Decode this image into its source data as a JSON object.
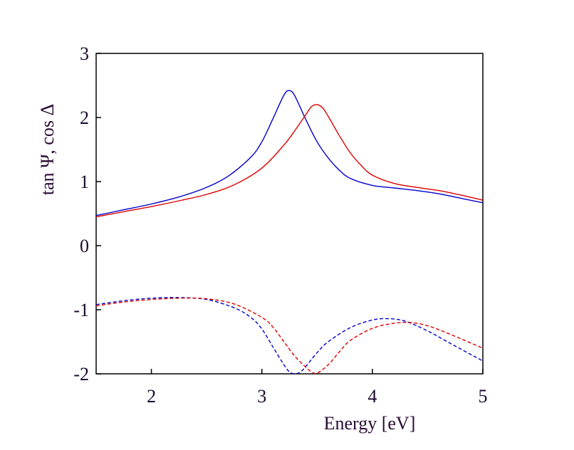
{
  "chart_data": {
    "type": "line",
    "xlabel": "Energy [eV]",
    "ylabel": "tan Ψ, cos Δ",
    "xlim": [
      1.5,
      5
    ],
    "ylim": [
      -2,
      3
    ],
    "xticks": [
      2,
      3,
      4,
      5
    ],
    "yticks": [
      3,
      2,
      1,
      0,
      -1,
      -2
    ],
    "x_tick_labels": [
      "2",
      "3",
      "4",
      "5"
    ],
    "y_tick_labels": [
      "3",
      "2",
      "1",
      "0",
      "-1",
      "-2"
    ],
    "grid": false,
    "legend": "none",
    "series": [
      {
        "color": "#0000cc",
        "style": "solid",
        "x": [
          1.5,
          1.75,
          2.0,
          2.25,
          2.5,
          2.7,
          2.9,
          3.0,
          3.1,
          3.2,
          3.25,
          3.3,
          3.4,
          3.5,
          3.6,
          3.7,
          3.8,
          4.0,
          4.2,
          4.4,
          4.6,
          4.8,
          5.0
        ],
        "values": [
          0.47,
          0.56,
          0.65,
          0.76,
          0.91,
          1.09,
          1.38,
          1.62,
          1.98,
          2.35,
          2.42,
          2.33,
          1.96,
          1.62,
          1.37,
          1.18,
          1.05,
          0.94,
          0.9,
          0.86,
          0.81,
          0.74,
          0.67
        ]
      },
      {
        "color": "#dd0000",
        "style": "solid",
        "x": [
          1.5,
          1.75,
          2.0,
          2.25,
          2.5,
          2.75,
          3.0,
          3.2,
          3.3,
          3.4,
          3.45,
          3.5,
          3.55,
          3.6,
          3.7,
          3.8,
          3.9,
          4.0,
          4.2,
          4.4,
          4.6,
          4.8,
          5.0
        ],
        "values": [
          0.45,
          0.53,
          0.61,
          0.7,
          0.8,
          0.95,
          1.21,
          1.57,
          1.8,
          2.05,
          2.17,
          2.2,
          2.15,
          2.02,
          1.72,
          1.45,
          1.25,
          1.1,
          0.97,
          0.91,
          0.86,
          0.79,
          0.71
        ]
      },
      {
        "color": "#0000cc",
        "style": "dashed",
        "x": [
          1.5,
          1.75,
          2.0,
          2.25,
          2.5,
          2.75,
          2.9,
          3.0,
          3.1,
          3.2,
          3.25,
          3.3,
          3.35,
          3.4,
          3.5,
          3.6,
          3.8,
          4.0,
          4.15,
          4.3,
          4.5,
          4.7,
          5.0
        ],
        "values": [
          -0.92,
          -0.86,
          -0.82,
          -0.81,
          -0.84,
          -0.97,
          -1.12,
          -1.3,
          -1.58,
          -1.86,
          -1.97,
          -2.0,
          -1.97,
          -1.88,
          -1.67,
          -1.5,
          -1.28,
          -1.16,
          -1.14,
          -1.18,
          -1.33,
          -1.52,
          -1.8
        ]
      },
      {
        "color": "#dd0000",
        "style": "dashed",
        "x": [
          1.5,
          1.75,
          2.0,
          2.25,
          2.5,
          2.75,
          3.0,
          3.1,
          3.2,
          3.3,
          3.4,
          3.45,
          3.5,
          3.6,
          3.7,
          3.8,
          4.0,
          4.2,
          4.35,
          4.5,
          4.7,
          5.0
        ],
        "values": [
          -0.94,
          -0.88,
          -0.84,
          -0.82,
          -0.83,
          -0.91,
          -1.12,
          -1.27,
          -1.5,
          -1.73,
          -1.9,
          -1.97,
          -1.99,
          -1.86,
          -1.66,
          -1.48,
          -1.29,
          -1.21,
          -1.2,
          -1.25,
          -1.38,
          -1.6
        ]
      }
    ]
  }
}
